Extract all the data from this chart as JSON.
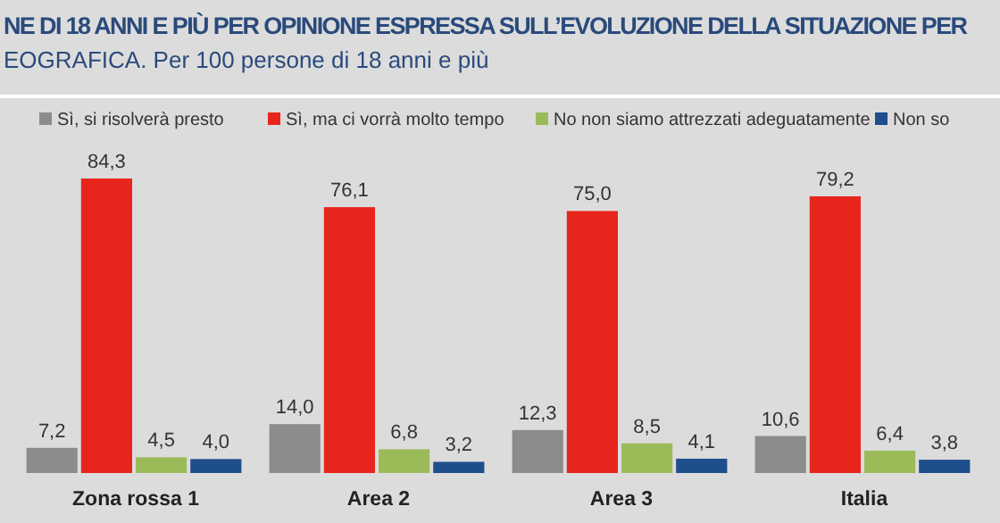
{
  "chart_data": {
    "type": "bar",
    "title": "NE DI 18 ANNI E PIÙ PER OPINIONE ESPRESSA SULL’EVOLUZIONE DELLA SITUAZIONE PER",
    "subtitle": "EOGRAFICA. Per 100 persone di 18 anni e più",
    "categories": [
      "Zona rossa 1",
      "Area 2",
      "Area 3",
      "Italia"
    ],
    "series": [
      {
        "name": "Sì, si risolverà presto",
        "color": "#8c8c8c",
        "values": [
          7.2,
          14.0,
          12.3,
          10.6
        ],
        "value_labels": [
          "7,2",
          "14,0",
          "12,3",
          "10,6"
        ]
      },
      {
        "name": "Sì, ma ci vorrà molto tempo",
        "color": "#e8251d",
        "values": [
          84.3,
          76.1,
          75.0,
          79.2
        ],
        "value_labels": [
          "84,3",
          "76,1",
          "75,0",
          "79,2"
        ]
      },
      {
        "name": "No non siamo attrezzati adeguatamente",
        "color": "#9bbb59",
        "values": [
          4.5,
          6.8,
          8.5,
          6.4
        ],
        "value_labels": [
          "4,5",
          "6,8",
          "8,5",
          "6,4"
        ]
      },
      {
        "name": "Non so",
        "color": "#1f4e8c",
        "values": [
          4.0,
          3.2,
          4.1,
          3.8
        ],
        "value_labels": [
          "4,0",
          "3,2",
          "4,1",
          "3,8"
        ]
      }
    ],
    "legend": "top"
  }
}
